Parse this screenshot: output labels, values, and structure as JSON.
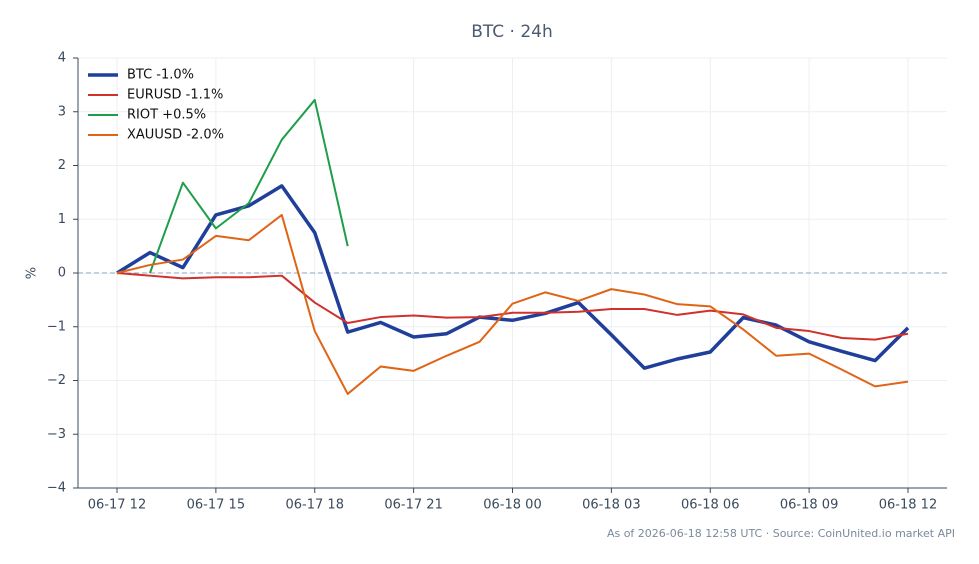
{
  "chart_data": {
    "type": "line",
    "title": "BTC · 24h",
    "ylabel": "%",
    "footnote": "As of 2026-06-18 12:58 UTC · Source: CoinUnited.io market API",
    "categories": [
      "06-17 12",
      null,
      null,
      "06-17 15",
      null,
      null,
      "06-17 18",
      null,
      null,
      "06-17 21",
      null,
      null,
      "06-18 00",
      null,
      null,
      "06-18 03",
      null,
      null,
      "06-18 06",
      null,
      null,
      "06-18 09",
      null,
      null,
      "06-18 12"
    ],
    "series": [
      {
        "name": "BTC -1.0%",
        "color": "#1f3f9a",
        "linewidth": 3.5,
        "values": [
          0,
          0.38,
          0.1,
          1.08,
          1.25,
          1.62,
          0.75,
          -1.1,
          -0.92,
          -1.19,
          -1.13,
          -0.82,
          -0.88,
          -0.75,
          -0.55,
          -1.15,
          -1.77,
          -1.6,
          -1.47,
          -0.83,
          -0.97,
          -1.28,
          -1.46,
          -1.63,
          -1.02
        ]
      },
      {
        "name": "EURUSD -1.1%",
        "color": "#d0312d",
        "linewidth": 2,
        "values": [
          0,
          -0.05,
          -0.1,
          -0.08,
          -0.08,
          -0.05,
          -0.55,
          -0.93,
          -0.82,
          -0.79,
          -0.83,
          -0.82,
          -0.74,
          -0.74,
          -0.72,
          -0.67,
          -0.67,
          -0.78,
          -0.7,
          -0.77,
          -1.02,
          -1.08,
          -1.21,
          -1.24,
          -1.13
        ]
      },
      {
        "name": "RIOT +0.5%",
        "color": "#1e9e4a",
        "linewidth": 2,
        "values": [
          null,
          0,
          1.68,
          0.83,
          1.3,
          2.48,
          3.22,
          0.5,
          null,
          null,
          null,
          null,
          null,
          null,
          null,
          null,
          null,
          null,
          null,
          null,
          null,
          null,
          null,
          null,
          null
        ]
      },
      {
        "name": "XAUUSD -2.0%",
        "color": "#e06416",
        "linewidth": 2,
        "values": [
          0,
          0.15,
          0.25,
          0.69,
          0.61,
          1.08,
          -1.08,
          -2.25,
          -1.74,
          -1.82,
          -1.54,
          -1.28,
          -0.57,
          -0.36,
          -0.52,
          -0.3,
          -0.4,
          -0.58,
          -0.62,
          -1.05,
          -1.54,
          -1.5,
          -1.8,
          -2.11,
          -2.02
        ]
      }
    ],
    "ylim": [
      -4,
      4
    ],
    "yticks": [
      {
        "value": -4,
        "label": "−4"
      },
      {
        "value": -3,
        "label": "−3"
      },
      {
        "value": -2,
        "label": "−2"
      },
      {
        "value": -1,
        "label": "−1"
      },
      0,
      1,
      2,
      3,
      4
    ],
    "grid": true,
    "zero_line": true,
    "legend": "upper left"
  }
}
